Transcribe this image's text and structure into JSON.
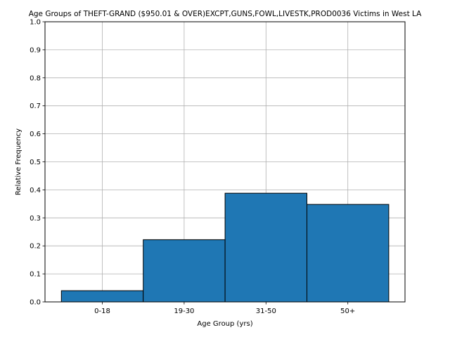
{
  "chart_data": {
    "type": "bar",
    "title": "Age Groups of THEFT-GRAND ($950.01 & OVER)EXCPT,GUNS,FOWL,LIVESTK,PROD0036 Victims in West LA",
    "xlabel": "Age Group (yrs)",
    "ylabel": "Relative Frequency",
    "categories": [
      "0-18",
      "19-30",
      "31-50",
      "50+"
    ],
    "values": [
      0.04,
      0.222,
      0.388,
      0.348
    ],
    "ylim": [
      0,
      1.0
    ],
    "yticks": [
      "0.0",
      "0.1",
      "0.2",
      "0.3",
      "0.4",
      "0.5",
      "0.6",
      "0.7",
      "0.8",
      "0.9",
      "1.0"
    ],
    "grid": true,
    "bar_color": "#1f77b4",
    "edge_color": "#000000"
  }
}
